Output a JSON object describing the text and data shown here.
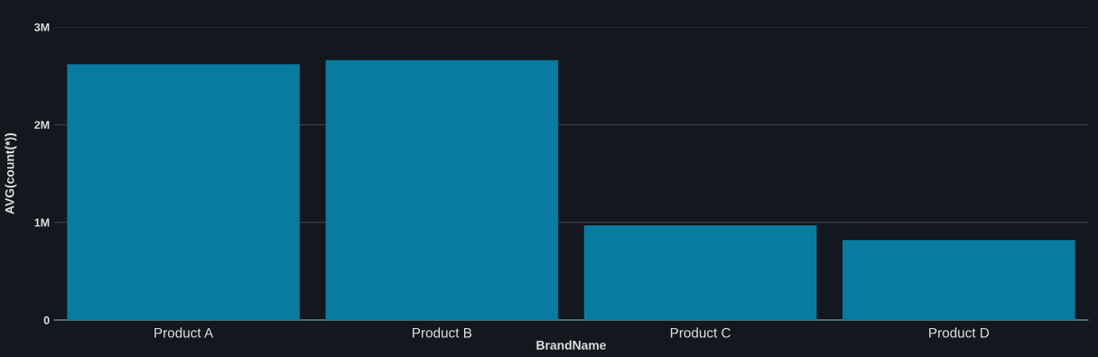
{
  "chart_data": {
    "type": "bar",
    "xlabel": "BrandName",
    "ylabel": "AVG(count(*))",
    "categories": [
      "Product A",
      "Product B",
      "Product C",
      "Product D"
    ],
    "values": [
      2620000,
      2660000,
      970000,
      820000
    ],
    "color": "#087ba0",
    "ylim": [
      0,
      3000000
    ],
    "yticks": [
      {
        "value": 0,
        "label": "0"
      },
      {
        "value": 1000000,
        "label": "1M"
      },
      {
        "value": 2000000,
        "label": "2M"
      },
      {
        "value": 3000000,
        "label": "3M"
      }
    ],
    "grid": "y",
    "legend": false
  }
}
